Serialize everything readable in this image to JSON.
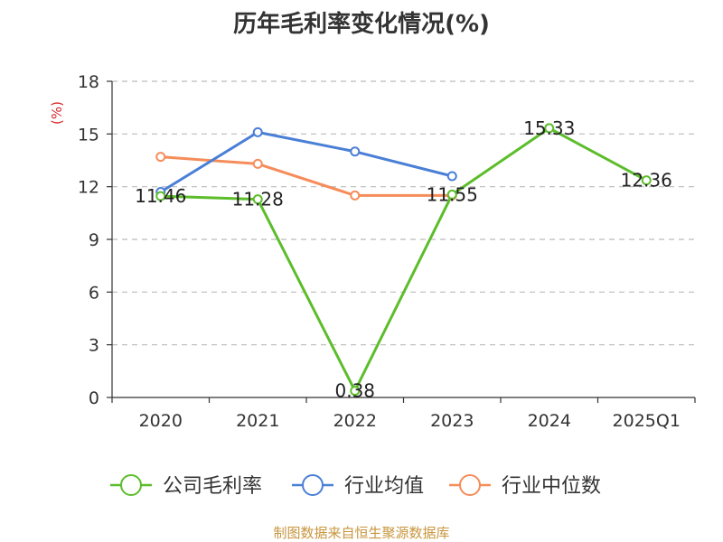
{
  "title": "历年毛利率变化情况(%)",
  "source": "制图数据来自恒生聚源数据库",
  "colors": {
    "company": "#5cbd2b",
    "industry_avg": "#4a7fd6",
    "industry_median": "#f58c5a",
    "unit_label": "#d8282b",
    "source": "#c8963e"
  },
  "chart_data": {
    "type": "line",
    "title": "历年毛利率变化情况(%)",
    "ylabel": "(%)",
    "xlabel": "",
    "categories": [
      "2020",
      "2021",
      "2022",
      "2023",
      "2024",
      "2025Q1"
    ],
    "ylim": [
      0,
      18
    ],
    "yticks": [
      0,
      3,
      6,
      9,
      12,
      15,
      18
    ],
    "grid": true,
    "legend_position": "bottom",
    "series": [
      {
        "name": "公司毛利率",
        "color_key": "company",
        "values": [
          11.46,
          11.28,
          0.38,
          11.55,
          15.33,
          12.36
        ],
        "labels": [
          "11.46",
          "11.28",
          "0.38",
          "11.55",
          "15.33",
          "12.36"
        ]
      },
      {
        "name": "行业均值",
        "color_key": "industry_avg",
        "values": [
          11.7,
          15.1,
          14.0,
          12.6,
          null,
          null
        ]
      },
      {
        "name": "行业中位数",
        "color_key": "industry_median",
        "values": [
          13.7,
          13.3,
          11.5,
          11.5,
          null,
          null
        ]
      }
    ]
  }
}
